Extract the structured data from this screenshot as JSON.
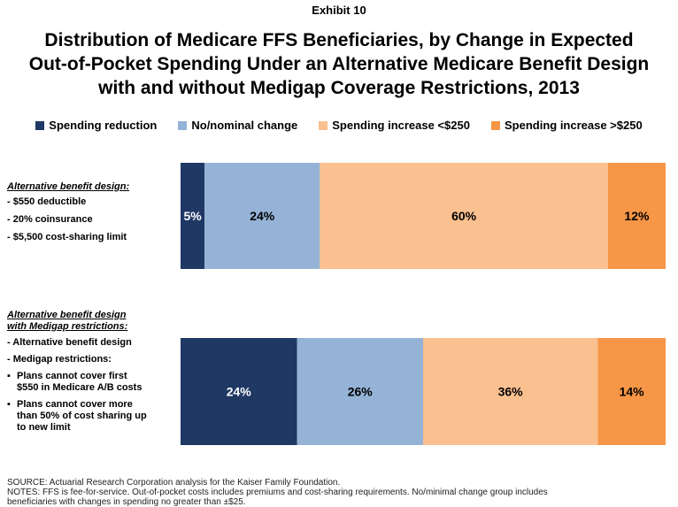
{
  "header": {
    "exhibit": "Exhibit 10",
    "title_lines": [
      "Distribution of Medicare FFS Beneficiaries, by Change in Expected",
      "Out-of-Pocket Spending Under an Alternative Medicare Benefit Design",
      "with and without Medigap Coverage Restrictions, 2013"
    ]
  },
  "legend": [
    {
      "label": "Spending reduction",
      "color": "#1F3864"
    },
    {
      "label": "No/nominal change",
      "color": "#95B3D7"
    },
    {
      "label": "Spending increase <$250",
      "color": "#FAC090"
    },
    {
      "label": "Spending increase >$250",
      "color": "#F79646"
    }
  ],
  "groups": [
    {
      "heading": "Alternative benefit design:",
      "lines": [
        "- $550 deductible",
        "- 20% coinsurance",
        "- $5,500 cost-sharing limit"
      ],
      "bullets": []
    },
    {
      "heading_lines": [
        "Alternative benefit design",
        "with Medigap restrictions:"
      ],
      "lines": [
        "- Alternative benefit design",
        "- Medigap restrictions:"
      ],
      "bullets": [
        [
          "Plans cannot cover first",
          "$550 in Medicare A/B costs"
        ],
        [
          "Plans cannot cover more",
          "than 50% of cost sharing up",
          "to new limit"
        ]
      ]
    }
  ],
  "chart_data": {
    "type": "bar",
    "orientation": "horizontal",
    "stacked": true,
    "percent_scale": true,
    "categories": [
      "Alternative benefit design",
      "Alternative benefit design with Medigap restrictions"
    ],
    "series": [
      {
        "name": "Spending reduction",
        "color": "#1F3864",
        "values": [
          5,
          24
        ],
        "labels": [
          "5%",
          "24%"
        ]
      },
      {
        "name": "No/nominal change",
        "color": "#95B3D7",
        "values": [
          24,
          26
        ],
        "labels": [
          "24%",
          "26%"
        ]
      },
      {
        "name": "Spending increase <$250",
        "color": "#FAC090",
        "values": [
          60,
          36
        ],
        "labels": [
          "60%",
          "36%"
        ]
      },
      {
        "name": "Spending increase >$250",
        "color": "#F79646",
        "values": [
          12,
          14
        ],
        "labels": [
          "12%",
          "14%"
        ]
      }
    ],
    "legend_position": "top"
  },
  "footer": {
    "source": "SOURCE: Actuarial Research Corporation analysis for the Kaiser Family Foundation.",
    "notes": "NOTES: FFS is fee-for-service. Out-of-pocket costs includes premiums and cost-sharing requirements. No/minimal change group includes",
    "notes2": "beneficiaries with changes in spending no greater than ±$25."
  }
}
